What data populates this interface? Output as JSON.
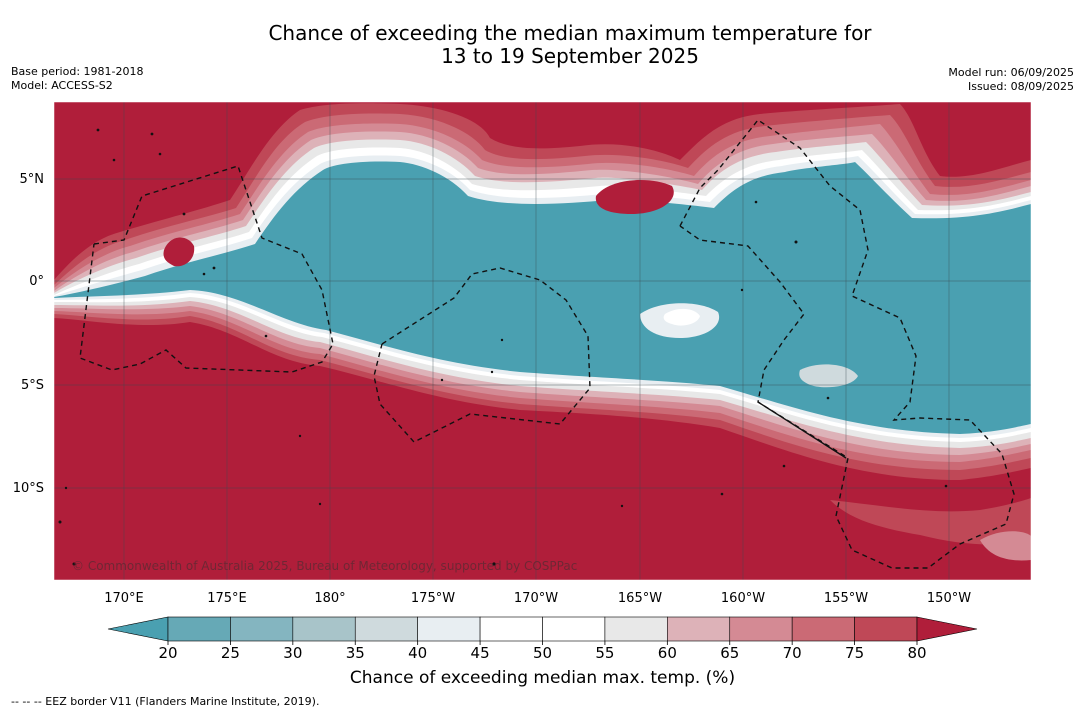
{
  "title": {
    "line1": "Chance of exceeding the median maximum temperature for",
    "line2": "13 to 19 September 2025"
  },
  "meta": {
    "base_period": "Base period: 1981-2018",
    "model": "Model: ACCESS-S2",
    "model_run": "Model run: 06/09/2025",
    "issued": "Issued: 08/09/2025"
  },
  "map": {
    "lat_labels": [
      "5°N",
      "0°",
      "5°S",
      "10°S"
    ],
    "lon_labels": [
      "170°E",
      "175°E",
      "180°",
      "175°W",
      "170°W",
      "165°W",
      "160°W",
      "155°W",
      "150°W"
    ],
    "copyright": "© Commonwealth of Australia 2025, Bureau of Meteorology, supported by COSPPac",
    "colors": {
      "p80": "#b01e3a",
      "p75": "#bf4857",
      "p70": "#cb6a75",
      "p65": "#d48a94",
      "p60": "#ddb2b8",
      "p55": "#e8e8e8",
      "p50": "#ffffff",
      "p45": "#ffffff",
      "p40": "#e8eef2",
      "p35": "#cfdadd",
      "p30": "#a8c4c9",
      "p25": "#84b5c0",
      "p20": "#66a9b6",
      "below20": "#4aa0b1"
    }
  },
  "colorbar": {
    "ticks": [
      "20",
      "25",
      "30",
      "35",
      "40",
      "45",
      "50",
      "55",
      "60",
      "65",
      "70",
      "75",
      "80"
    ],
    "segment_colors": [
      "#66a9b6",
      "#84b5c0",
      "#a8c4c9",
      "#cfdadd",
      "#e8eef2",
      "#ffffff",
      "#ffffff",
      "#e8e8e8",
      "#ddb2b8",
      "#d48a94",
      "#cb6a75",
      "#bf4857"
    ],
    "low_color": "#4aa0b1",
    "high_color": "#b01e3a",
    "label": "Chance of exceeding median max. temp. (%)"
  },
  "footer": "--  --  -- EEZ border V11 (Flanders Marine Institute, 2019)."
}
